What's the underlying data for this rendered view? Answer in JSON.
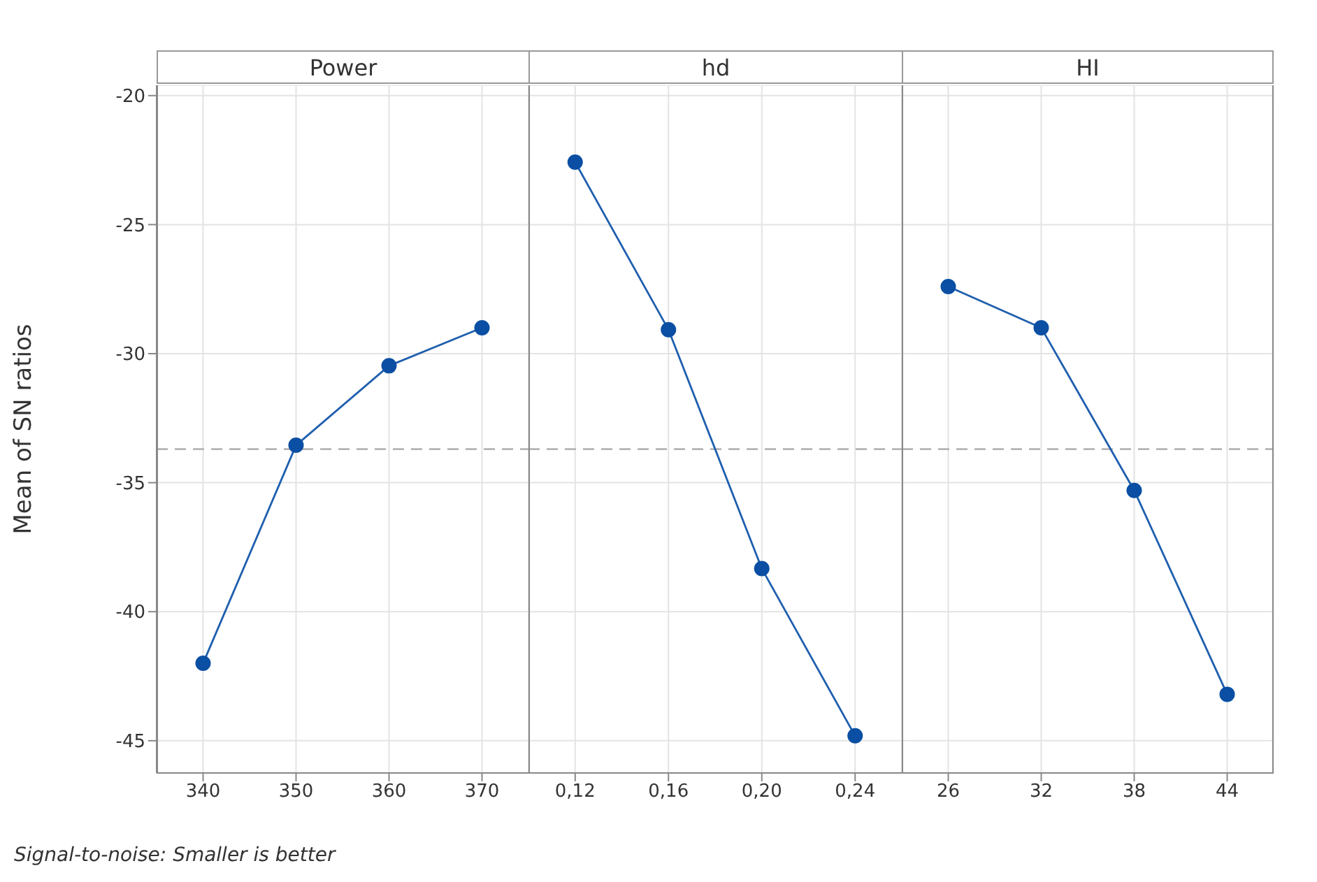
{
  "chart_data": [
    {
      "type": "line",
      "title": "Power",
      "ylabel": "Mean of SN ratios",
      "categories": [
        "340",
        "350",
        "360",
        "370"
      ],
      "values": [
        -42.0,
        -33.55,
        -30.47,
        -29.0
      ],
      "color": "#1f5fae",
      "marker": "circle",
      "ylim": [
        -46.25,
        -19.6
      ],
      "yticks": [
        -45,
        -40,
        -35,
        -30,
        -25,
        -20
      ],
      "grid": true,
      "ref_lines": [
        {
          "axis": "y",
          "value": -33.7,
          "color": "#b4b4b4",
          "line_style": "dashed"
        }
      ],
      "annotations": [
        "Signal-to-noise: Smaller is better"
      ]
    },
    {
      "type": "line",
      "title": "hd",
      "categories": [
        "0,12",
        "0,16",
        "0,20",
        "0,24"
      ],
      "values": [
        -22.58,
        -29.07,
        -38.33,
        -44.81
      ],
      "color": "#1f5fae",
      "marker": "circle",
      "ylim": [
        -46.25,
        -19.6
      ],
      "yticks": [
        -45,
        -40,
        -35,
        -30,
        -25,
        -20
      ],
      "grid": true,
      "tick_labels": "x",
      "ref_lines": [
        {
          "axis": "y",
          "value": -33.7,
          "color": "#b4b4b4",
          "line_style": "dashed"
        }
      ]
    },
    {
      "type": "line",
      "title": "HI",
      "categories": [
        "26",
        "32",
        "38",
        "44"
      ],
      "values": [
        -27.4,
        -29.0,
        -35.3,
        -43.2
      ],
      "color": "#1f5fae",
      "marker": "circle",
      "ylim": [
        -46.25,
        -19.6
      ],
      "yticks": [
        -45,
        -40,
        -35,
        -30,
        -25,
        -20
      ],
      "grid": true,
      "tick_labels": "x",
      "ref_lines": [
        {
          "axis": "y",
          "value": -33.7,
          "color": "#b4b4b4",
          "line_style": "dashed"
        }
      ]
    }
  ]
}
